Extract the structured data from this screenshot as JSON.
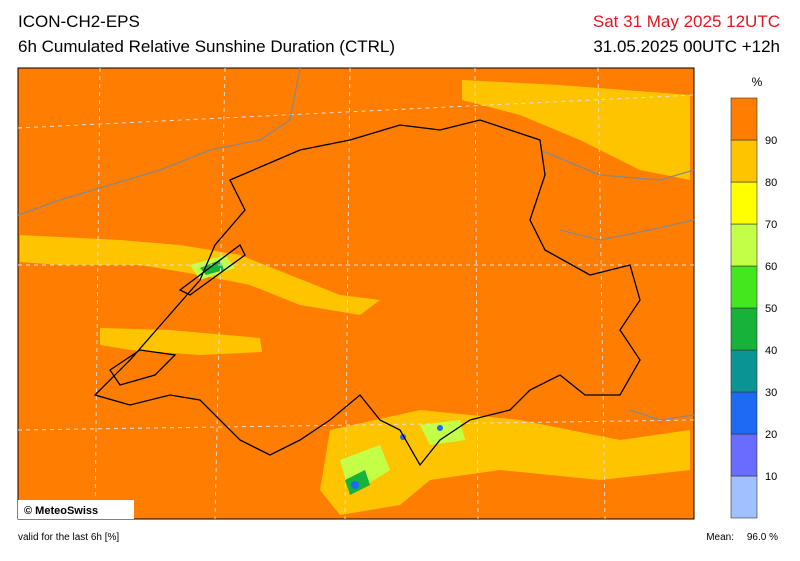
{
  "header": {
    "title": "ICON-CH2-EPS",
    "subtitle": "6h Cumulated Relative Sunshine Duration (CTRL)",
    "date": "Sat 31 May 2025 12UTC",
    "run": "31.05.2025 00UTC +12h"
  },
  "map": {
    "copyright": "© MeteoSwiss"
  },
  "legend": {
    "unit": "%",
    "levels": [
      10,
      20,
      30,
      40,
      50,
      60,
      70,
      80,
      90
    ],
    "colors": [
      "#a0c0ff",
      "#6a6cff",
      "#1e6af5",
      "#0a9494",
      "#16b23a",
      "#44e61e",
      "#c4ff48",
      "#ffff00",
      "#ffc400",
      "#ff7d00"
    ]
  },
  "footer": {
    "note": "valid for the last 6h [%]",
    "mean_label": "Mean:",
    "mean": "96.0 %"
  }
}
